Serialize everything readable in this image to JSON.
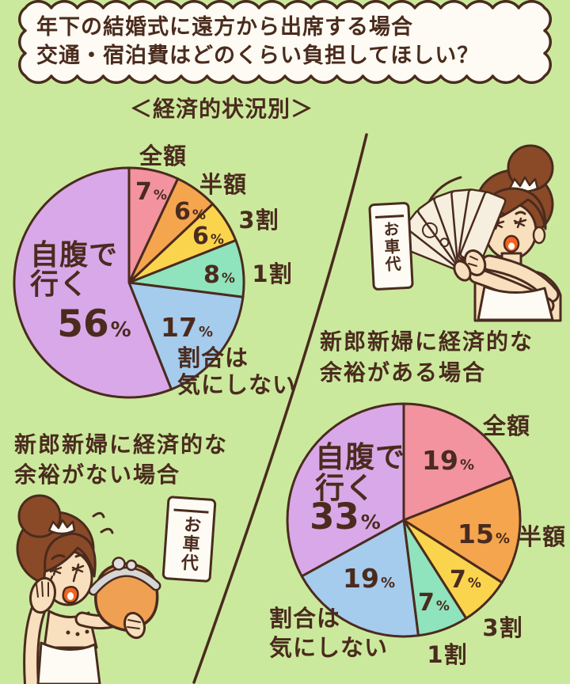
{
  "page": {
    "bg_color": "#cbe99d",
    "ink_color": "#4a2b1e"
  },
  "header": {
    "title_line1": "年下の結婚式に遠方から出席する場合",
    "title_line2": "交通・宿泊費はどのくらい負担してほしい？",
    "subtitle": "＜経済的状況別＞"
  },
  "sections": {
    "no_leeway": {
      "caption_line1": "新郎新婦に経済的な",
      "caption_line2": "余裕がない場合"
    },
    "leeway": {
      "caption_line1": "新郎新婦に経済的な",
      "caption_line2": "余裕がある場合"
    }
  },
  "illustrations": {
    "envelope_label": "お車代",
    "rich_bride": "happy bride waving a fan of banknotes",
    "poor_bride": "worried bride holding an empty coin purse"
  },
  "chart_data": [
    {
      "id": "no_leeway",
      "type": "pie",
      "title": "新郎新婦に経済的な余裕がない場合",
      "start_angle_deg": 0,
      "direction": "clockwise",
      "slices": [
        {
          "label": "全額",
          "value": 7,
          "color": "#f2939f"
        },
        {
          "label": "半額",
          "value": 6,
          "color": "#f5a54e"
        },
        {
          "label": "3割",
          "value": 6,
          "color": "#fbd44d"
        },
        {
          "label": "1割",
          "value": 8,
          "color": "#8fe3bd"
        },
        {
          "label": "割合は気にしない",
          "value": 17,
          "color": "#a5cbed"
        },
        {
          "label": "自腹で行く",
          "value": 56,
          "color": "#d9a8e9"
        }
      ]
    },
    {
      "id": "leeway",
      "type": "pie",
      "title": "新郎新婦に経済的な余裕がある場合",
      "start_angle_deg": 0,
      "direction": "clockwise",
      "slices": [
        {
          "label": "全額",
          "value": 19,
          "color": "#f2939f"
        },
        {
          "label": "半額",
          "value": 15,
          "color": "#f5a54e"
        },
        {
          "label": "3割",
          "value": 7,
          "color": "#fbd44d"
        },
        {
          "label": "1割",
          "value": 7,
          "color": "#8fe3bd"
        },
        {
          "label": "割合は気にしない",
          "value": 19,
          "color": "#a5cbed"
        },
        {
          "label": "自腹で行く",
          "value": 33,
          "color": "#d9a8e9"
        }
      ]
    }
  ]
}
